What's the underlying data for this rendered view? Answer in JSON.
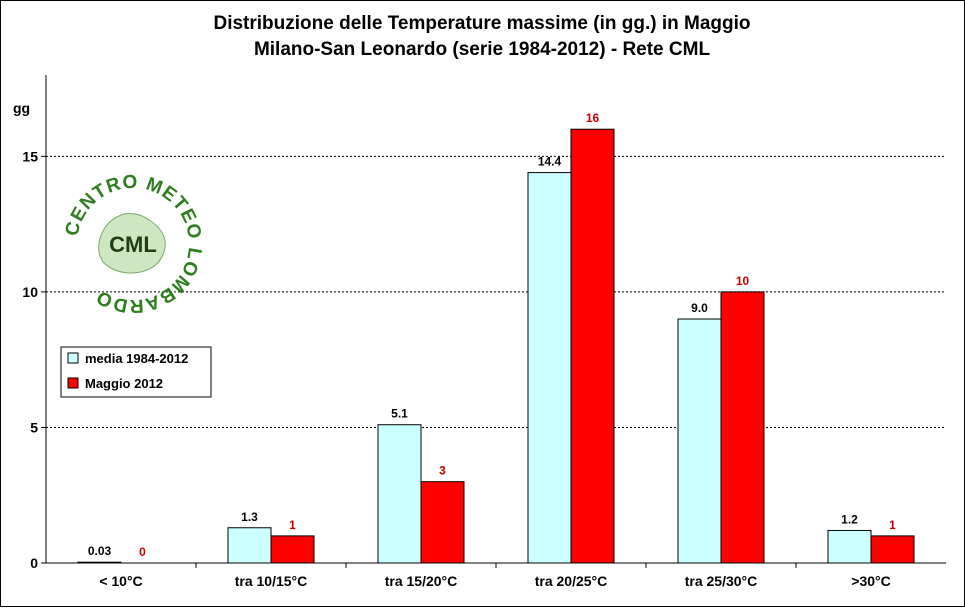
{
  "colors": {
    "series_media": "#ccffff",
    "series_maggio": "#ff0000",
    "media_label": "#000000",
    "maggio_label": "#cc0000",
    "logo_green": "#2e7d1e"
  },
  "logo": {
    "ring_text": "CENTRO METEO LOMBARDO",
    "center_text": "CML"
  },
  "chart_data": {
    "type": "bar",
    "title": "Distribuzione  delle  Temperature  massime  (in gg.)  in  Maggio",
    "subtitle": "Milano-San  Leonardo  (serie  1984-2012)   - Rete  CML",
    "ylabel": "gg",
    "xlabel": "",
    "ylim": [
      0,
      18
    ],
    "yticks": [
      0,
      5,
      10,
      15
    ],
    "grid": true,
    "legend_position": "left",
    "categories": [
      "< 10°C",
      "tra 10/15°C",
      "tra 15/20°C",
      "tra 20/25°C",
      "tra 25/30°C",
      ">30°C"
    ],
    "series": [
      {
        "name": "media 1984-2012",
        "values": [
          0.03,
          1.3,
          5.1,
          14.4,
          9.0,
          1.2
        ],
        "labels": [
          "0.03",
          "1.3",
          "5.1",
          "14.4",
          "9.0",
          "1.2"
        ]
      },
      {
        "name": "Maggio 2012",
        "values": [
          0,
          1,
          3,
          16,
          10,
          1
        ],
        "labels": [
          "0",
          "1",
          "3",
          "16",
          "10",
          "1"
        ]
      }
    ]
  }
}
